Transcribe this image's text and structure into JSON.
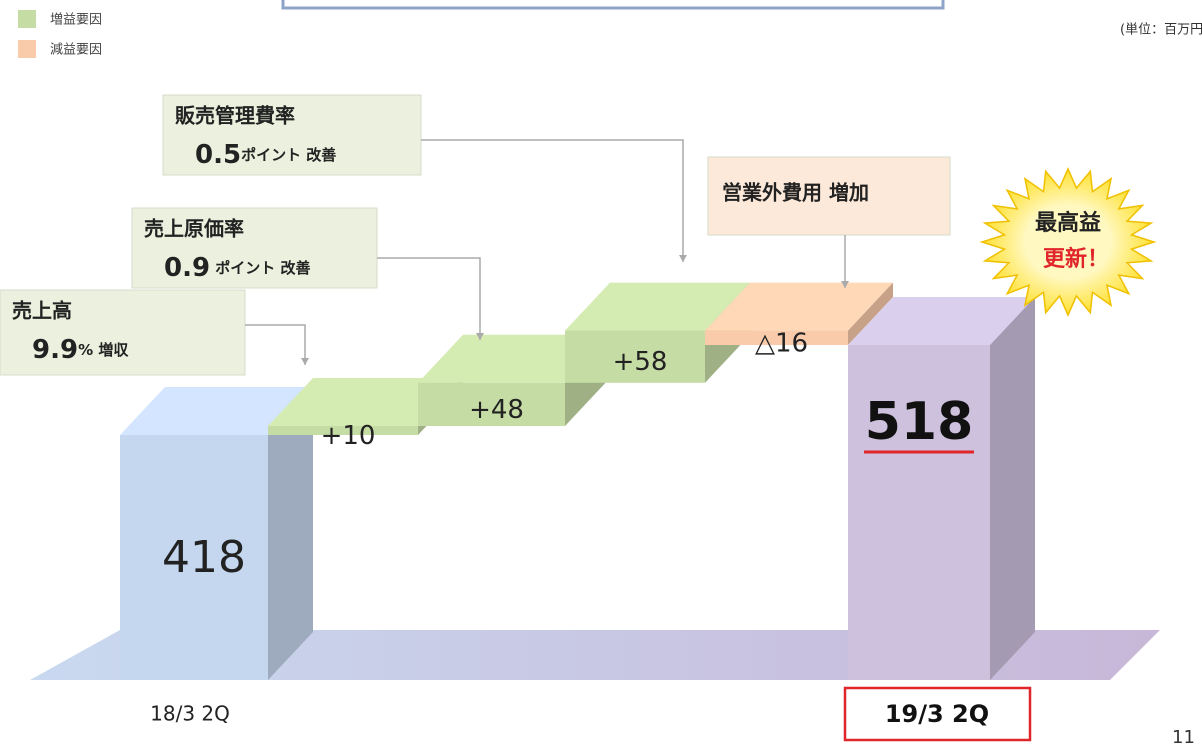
{
  "chart_data": {
    "type": "waterfall",
    "categories": [
      "18/3 2Q",
      null,
      null,
      null,
      null,
      "19/3 2Q"
    ],
    "values": [
      418,
      10,
      48,
      58,
      -16,
      518
    ],
    "value_labels": [
      "418",
      "+10",
      "+48",
      "+58",
      "△16",
      "518"
    ],
    "total_colors": [
      "#c5d6ef",
      "#cdc1de"
    ],
    "legend": [
      {
        "name": "増益要因",
        "color": "#c6dca5"
      },
      {
        "name": "減益要因",
        "color": "#f9cbab"
      }
    ],
    "unit": "(単位：百万円)",
    "annotations": [
      {
        "title": "売上高",
        "figure": "9.9",
        "note": "% 増収"
      },
      {
        "title": "売上原価率",
        "figure": "0.9",
        "note": " ポイント 改善"
      },
      {
        "title": "販売管理費率",
        "figure": "0.5",
        "note": "ポイント 改善"
      },
      {
        "title": "営業外費用 増加"
      }
    ],
    "badge": [
      "最高益",
      "更新！"
    ],
    "page_number": "11"
  }
}
